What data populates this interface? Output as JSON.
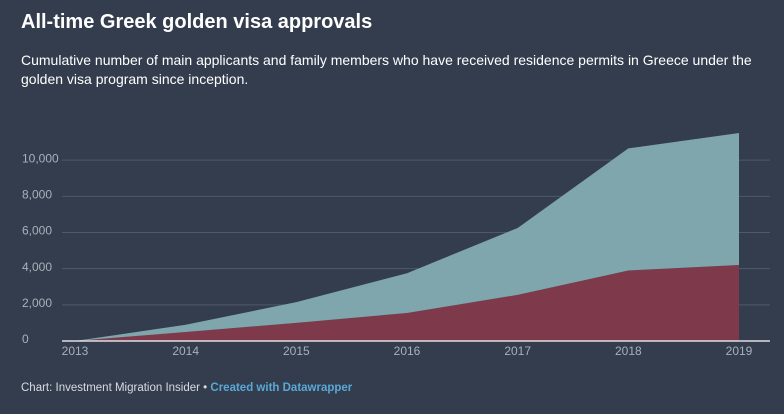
{
  "chart_data": {
    "type": "area",
    "title": "All-time Greek golden visa approvals",
    "subtitle": "Cumulative number of main applicants and family members who have received residence permits in Greece under the golden visa program since inception.",
    "source": "Chart: Investment Migration Insider",
    "separator": "•",
    "credit": "Created with Datawrapper",
    "stacked": true,
    "x": [
      2013,
      2014,
      2015,
      2016,
      2017,
      2018,
      2019
    ],
    "xlim": [
      2013,
      2019
    ],
    "xticks": [
      2013,
      2014,
      2015,
      2016,
      2017,
      2018,
      2019
    ],
    "ylim": [
      0,
      12000
    ],
    "yticks": [
      0,
      {
        "value": 2000,
        "label": "2,000"
      },
      {
        "value": 4000,
        "label": "4,000"
      },
      {
        "value": 6000,
        "label": "6,000"
      },
      {
        "value": 8000,
        "label": "8,000"
      },
      {
        "value": 10000,
        "label": "10,000"
      }
    ],
    "grid": true,
    "series": [
      {
        "color": "#7e3a4b",
        "values": [
          0,
          500,
          1000,
          1550,
          2550,
          3900,
          4200
        ]
      },
      {
        "color": "#7fa5ad",
        "values": [
          0,
          400,
          1150,
          2200,
          3700,
          6750,
          7300
        ]
      }
    ]
  }
}
